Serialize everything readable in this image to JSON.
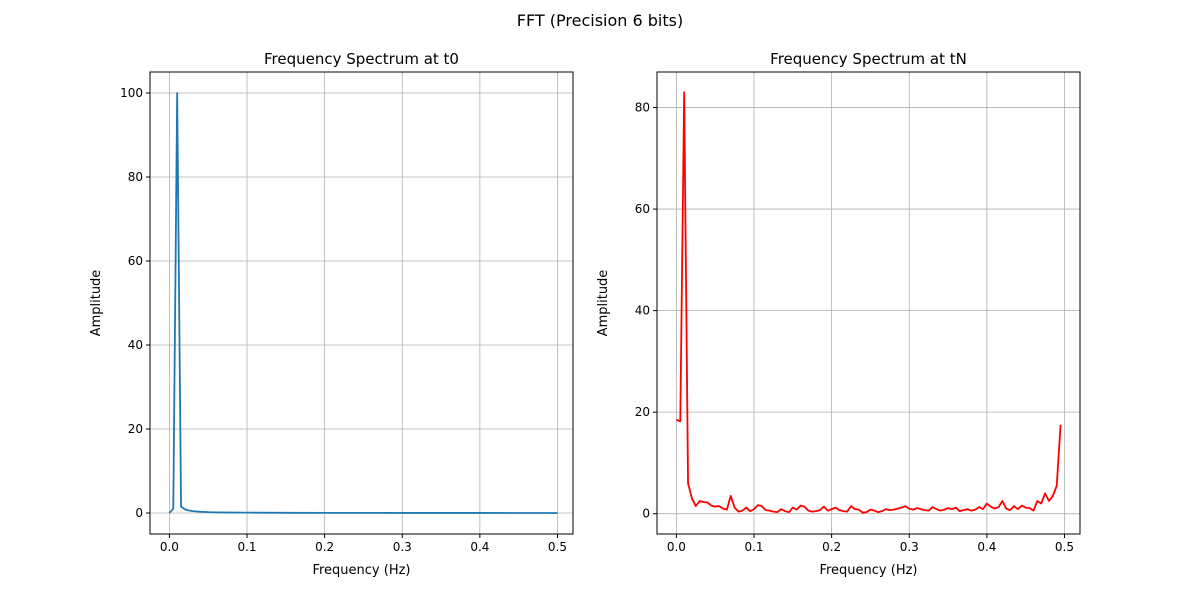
{
  "figure": {
    "suptitle": "FFT (Precision 6 bits)"
  },
  "chart_data": [
    {
      "type": "line",
      "title": "Frequency Spectrum at t0",
      "xlabel": "Frequency (Hz)",
      "ylabel": "Amplitude",
      "xlim": [
        -0.025,
        0.52
      ],
      "ylim": [
        -5,
        105
      ],
      "xticks": [
        0.0,
        0.1,
        0.2,
        0.3,
        0.4,
        0.5
      ],
      "xtick_labels": [
        "0.0",
        "0.1",
        "0.2",
        "0.3",
        "0.4",
        "0.5"
      ],
      "yticks": [
        0,
        20,
        40,
        60,
        80,
        100
      ],
      "ytick_labels": [
        "0",
        "20",
        "40",
        "60",
        "80",
        "100"
      ],
      "grid": true,
      "legend": "none",
      "color": "#1f77b4",
      "series": [
        {
          "x": [
            0.0,
            0.005,
            0.01,
            0.015,
            0.02,
            0.025,
            0.03,
            0.04,
            0.05,
            0.06,
            0.08,
            0.1,
            0.15,
            0.2,
            0.3,
            0.4,
            0.5
          ],
          "values": [
            0.0,
            1.0,
            100.0,
            1.5,
            0.9,
            0.6,
            0.45,
            0.3,
            0.2,
            0.15,
            0.1,
            0.08,
            0.05,
            0.03,
            0.02,
            0.01,
            0.0
          ]
        }
      ]
    },
    {
      "type": "line",
      "title": "Frequency Spectrum at tN",
      "xlabel": "Frequency (Hz)",
      "ylabel": "Amplitude",
      "xlim": [
        -0.025,
        0.52
      ],
      "ylim": [
        -4,
        87
      ],
      "xticks": [
        0.0,
        0.1,
        0.2,
        0.3,
        0.4,
        0.5
      ],
      "xtick_labels": [
        "0.0",
        "0.1",
        "0.2",
        "0.3",
        "0.4",
        "0.5"
      ],
      "yticks": [
        0,
        20,
        40,
        60,
        80
      ],
      "ytick_labels": [
        "0",
        "20",
        "40",
        "60",
        "80"
      ],
      "grid": true,
      "legend": "none",
      "color": "#ff0000",
      "series": [
        {
          "x": [
            0.0,
            0.005,
            0.01,
            0.015,
            0.02,
            0.025,
            0.03,
            0.035,
            0.04,
            0.045,
            0.05,
            0.055,
            0.06,
            0.065,
            0.07,
            0.075,
            0.08,
            0.085,
            0.09,
            0.095,
            0.1,
            0.105,
            0.11,
            0.115,
            0.12,
            0.125,
            0.13,
            0.135,
            0.14,
            0.145,
            0.15,
            0.155,
            0.16,
            0.165,
            0.17,
            0.175,
            0.18,
            0.185,
            0.19,
            0.195,
            0.2,
            0.205,
            0.21,
            0.215,
            0.22,
            0.225,
            0.23,
            0.235,
            0.24,
            0.245,
            0.25,
            0.255,
            0.26,
            0.265,
            0.27,
            0.275,
            0.28,
            0.285,
            0.29,
            0.295,
            0.3,
            0.305,
            0.31,
            0.315,
            0.32,
            0.325,
            0.33,
            0.335,
            0.34,
            0.345,
            0.35,
            0.355,
            0.36,
            0.365,
            0.37,
            0.375,
            0.38,
            0.385,
            0.39,
            0.395,
            0.4,
            0.405,
            0.41,
            0.415,
            0.42,
            0.425,
            0.43,
            0.435,
            0.44,
            0.445,
            0.45,
            0.455,
            0.46,
            0.465,
            0.47,
            0.475,
            0.48,
            0.485,
            0.49,
            0.495
          ],
          "values": [
            18.5,
            18.2,
            83.0,
            6.0,
            3.0,
            1.5,
            2.5,
            2.3,
            2.2,
            1.6,
            1.4,
            1.5,
            1.0,
            0.8,
            3.5,
            1.2,
            0.4,
            0.6,
            1.2,
            0.5,
            0.9,
            1.7,
            1.5,
            0.7,
            0.6,
            0.4,
            0.3,
            0.9,
            0.5,
            0.3,
            1.2,
            0.8,
            1.6,
            1.4,
            0.6,
            0.4,
            0.5,
            0.7,
            1.4,
            0.6,
            0.9,
            1.2,
            0.7,
            0.5,
            0.4,
            1.5,
            0.9,
            0.8,
            0.2,
            0.3,
            0.8,
            0.6,
            0.3,
            0.5,
            0.9,
            0.7,
            0.8,
            1.0,
            1.2,
            1.5,
            1.0,
            0.8,
            1.1,
            0.9,
            0.7,
            0.6,
            1.3,
            0.9,
            0.6,
            0.8,
            1.1,
            0.9,
            1.2,
            0.5,
            0.7,
            0.9,
            0.6,
            0.8,
            1.3,
            0.9,
            2.0,
            1.4,
            1.0,
            1.3,
            2.5,
            1.0,
            0.7,
            1.5,
            0.9,
            1.6,
            1.2,
            1.1,
            0.6,
            2.5,
            2.0,
            4.0,
            2.5,
            3.5,
            5.5,
            17.5
          ]
        }
      ]
    }
  ]
}
